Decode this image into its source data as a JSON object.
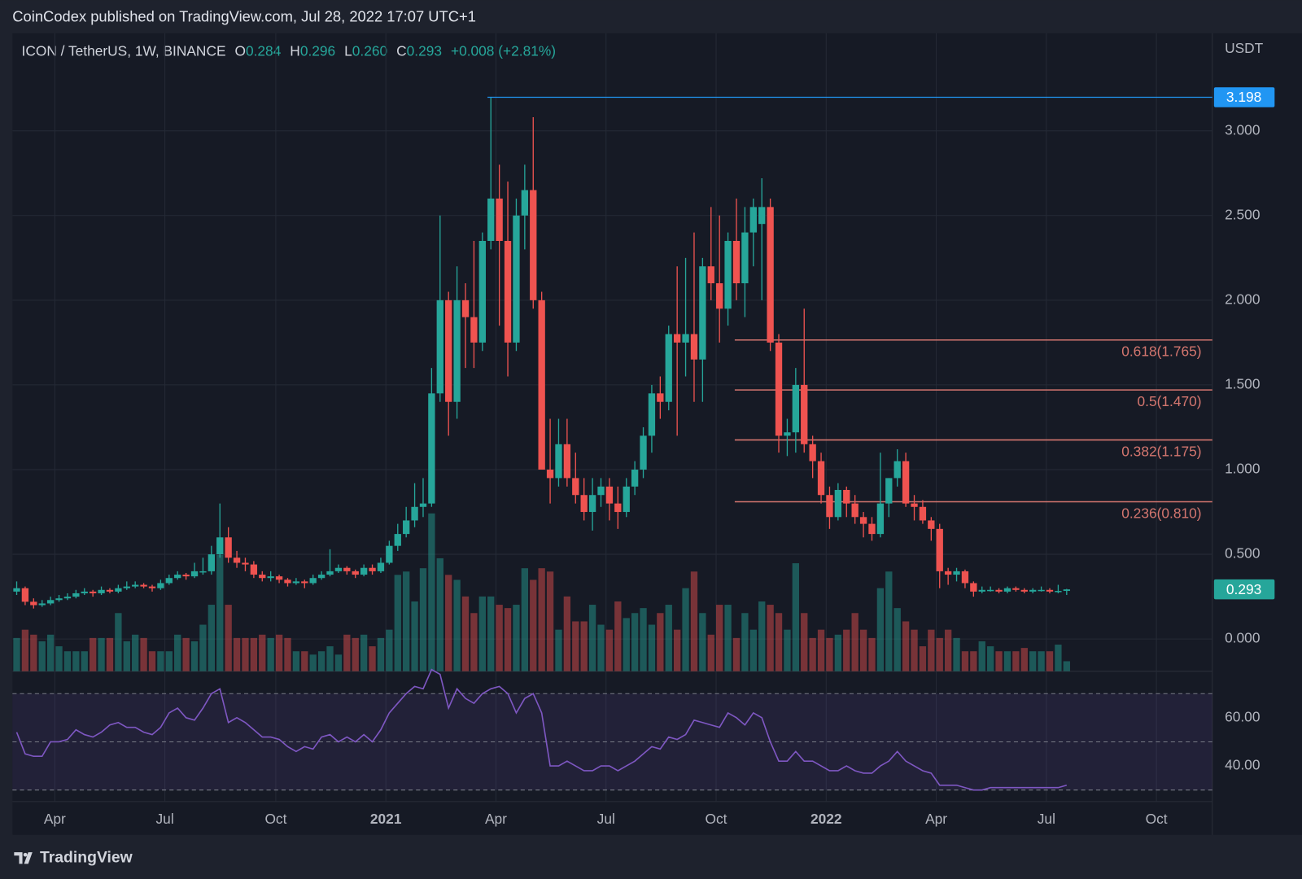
{
  "chart_data": {
    "type": "candlestick",
    "header": "CoinCodex published on TradingView.com, Jul 28, 2022 17:07 UTC+1",
    "legend": {
      "symbol": "ICON / TetherUS, 1W, BINANCE",
      "o_label": "O",
      "o": "0.284",
      "h_label": "H",
      "h": "0.296",
      "l_label": "L",
      "l": "0.260",
      "c_label": "C",
      "c": "0.293",
      "change": "+0.008 (+2.81%)"
    },
    "axis_unit": "USDT",
    "footer": "TradingView",
    "up_color": "#26a69a",
    "down_color": "#ef5350",
    "ylim": [
      -0.19,
      3.575
    ],
    "yticks": [
      {
        "value": 0,
        "label": "0.000"
      },
      {
        "value": 0.5,
        "label": "0.500"
      },
      {
        "value": 1,
        "label": "1.000"
      },
      {
        "value": 1.5,
        "label": "1.500"
      },
      {
        "value": 2,
        "label": "2.000"
      },
      {
        "value": 2.5,
        "label": "2.500"
      },
      {
        "value": 3,
        "label": "3.000"
      }
    ],
    "xlim": [
      -0.5,
      141.2
    ],
    "xticks": [
      {
        "value": 4.5,
        "label": "Apr"
      },
      {
        "value": 17.5,
        "label": "Jul"
      },
      {
        "value": 30.6,
        "label": "Oct"
      },
      {
        "value": 43.6,
        "label": "2021"
      },
      {
        "value": 56.6,
        "label": "Apr"
      },
      {
        "value": 69.6,
        "label": "Jul"
      },
      {
        "value": 82.6,
        "label": "Oct"
      },
      {
        "value": 95.6,
        "label": "2022"
      },
      {
        "value": 108.6,
        "label": "Apr"
      },
      {
        "value": 121.6,
        "label": "Jul"
      },
      {
        "value": 134.6,
        "label": "Oct"
      }
    ],
    "grid": true,
    "high_line": {
      "value": 3.198,
      "label": "3.198",
      "start": 55.6,
      "color": "#2196f3"
    },
    "last_price": {
      "value": 0.293,
      "label": "0.293"
    },
    "fib_start": 84.8,
    "fib_color": "#d4766f",
    "fib_levels": [
      {
        "value": 1.765,
        "label": "0.618(1.765)"
      },
      {
        "value": 1.47,
        "label": "0.5(1.470)"
      },
      {
        "value": 1.175,
        "label": "0.382(1.175)"
      },
      {
        "value": 0.81,
        "label": "0.236(0.810)"
      }
    ],
    "candles": [
      [
        0.28,
        0.34,
        0.26,
        0.3
      ],
      [
        0.3,
        0.31,
        0.2,
        0.22
      ],
      [
        0.22,
        0.24,
        0.18,
        0.2
      ],
      [
        0.2,
        0.23,
        0.19,
        0.21
      ],
      [
        0.21,
        0.25,
        0.2,
        0.23
      ],
      [
        0.23,
        0.26,
        0.22,
        0.24
      ],
      [
        0.24,
        0.27,
        0.23,
        0.25
      ],
      [
        0.25,
        0.29,
        0.24,
        0.27
      ],
      [
        0.27,
        0.3,
        0.26,
        0.28
      ],
      [
        0.28,
        0.29,
        0.25,
        0.27
      ],
      [
        0.27,
        0.31,
        0.26,
        0.29
      ],
      [
        0.29,
        0.3,
        0.27,
        0.28
      ],
      [
        0.28,
        0.32,
        0.27,
        0.3
      ],
      [
        0.3,
        0.34,
        0.29,
        0.31
      ],
      [
        0.31,
        0.34,
        0.3,
        0.32
      ],
      [
        0.32,
        0.33,
        0.3,
        0.31
      ],
      [
        0.31,
        0.32,
        0.28,
        0.3
      ],
      [
        0.3,
        0.35,
        0.29,
        0.33
      ],
      [
        0.33,
        0.38,
        0.32,
        0.36
      ],
      [
        0.36,
        0.4,
        0.35,
        0.38
      ],
      [
        0.38,
        0.39,
        0.35,
        0.37
      ],
      [
        0.37,
        0.45,
        0.36,
        0.4
      ],
      [
        0.4,
        0.48,
        0.38,
        0.4
      ],
      [
        0.4,
        0.55,
        0.38,
        0.5
      ],
      [
        0.5,
        0.8,
        0.48,
        0.6
      ],
      [
        0.6,
        0.66,
        0.45,
        0.48
      ],
      [
        0.48,
        0.52,
        0.42,
        0.45
      ],
      [
        0.45,
        0.48,
        0.4,
        0.44
      ],
      [
        0.44,
        0.46,
        0.36,
        0.38
      ],
      [
        0.38,
        0.4,
        0.34,
        0.36
      ],
      [
        0.36,
        0.4,
        0.34,
        0.37
      ],
      [
        0.37,
        0.38,
        0.33,
        0.35
      ],
      [
        0.35,
        0.36,
        0.31,
        0.33
      ],
      [
        0.33,
        0.36,
        0.32,
        0.34
      ],
      [
        0.34,
        0.35,
        0.3,
        0.33
      ],
      [
        0.33,
        0.38,
        0.32,
        0.36
      ],
      [
        0.36,
        0.4,
        0.35,
        0.38
      ],
      [
        0.38,
        0.53,
        0.37,
        0.4
      ],
      [
        0.4,
        0.44,
        0.39,
        0.42
      ],
      [
        0.42,
        0.43,
        0.38,
        0.4
      ],
      [
        0.4,
        0.41,
        0.36,
        0.38
      ],
      [
        0.38,
        0.44,
        0.37,
        0.42
      ],
      [
        0.42,
        0.44,
        0.38,
        0.4
      ],
      [
        0.4,
        0.48,
        0.39,
        0.45
      ],
      [
        0.45,
        0.58,
        0.44,
        0.55
      ],
      [
        0.55,
        0.68,
        0.52,
        0.62
      ],
      [
        0.62,
        0.78,
        0.6,
        0.7
      ],
      [
        0.7,
        0.92,
        0.66,
        0.78
      ],
      [
        0.78,
        0.95,
        0.72,
        0.8
      ],
      [
        0.8,
        1.6,
        0.78,
        1.45
      ],
      [
        1.45,
        2.5,
        1.4,
        2.0
      ],
      [
        2.0,
        2.05,
        1.2,
        1.4
      ],
      [
        1.4,
        2.2,
        1.3,
        2.0
      ],
      [
        2.0,
        2.1,
        1.6,
        1.9
      ],
      [
        1.9,
        2.35,
        1.6,
        1.75
      ],
      [
        1.75,
        2.4,
        1.7,
        2.35
      ],
      [
        2.35,
        3.198,
        2.3,
        2.6
      ],
      [
        2.6,
        2.8,
        1.85,
        2.35
      ],
      [
        2.35,
        2.7,
        1.55,
        1.75
      ],
      [
        1.75,
        2.6,
        1.7,
        2.5
      ],
      [
        2.5,
        2.8,
        2.3,
        2.65
      ],
      [
        2.65,
        3.08,
        1.95,
        2.0
      ],
      [
        2.0,
        2.05,
        1.0,
        1.0
      ],
      [
        1.0,
        1.3,
        0.8,
        0.95
      ],
      [
        0.95,
        1.3,
        0.9,
        1.15
      ],
      [
        1.15,
        1.3,
        0.9,
        0.95
      ],
      [
        0.95,
        1.1,
        0.8,
        0.85
      ],
      [
        0.85,
        0.95,
        0.7,
        0.75
      ],
      [
        0.75,
        0.95,
        0.64,
        0.85
      ],
      [
        0.85,
        0.95,
        0.78,
        0.9
      ],
      [
        0.9,
        0.95,
        0.7,
        0.8
      ],
      [
        0.8,
        0.9,
        0.65,
        0.75
      ],
      [
        0.75,
        0.95,
        0.72,
        0.9
      ],
      [
        0.9,
        1.05,
        0.85,
        1.0
      ],
      [
        1.0,
        1.25,
        0.95,
        1.2
      ],
      [
        1.2,
        1.5,
        1.1,
        1.45
      ],
      [
        1.45,
        1.55,
        1.3,
        1.4
      ],
      [
        1.4,
        1.85,
        1.35,
        1.8
      ],
      [
        1.8,
        2.2,
        1.2,
        1.75
      ],
      [
        1.75,
        2.25,
        1.55,
        1.8
      ],
      [
        1.8,
        2.4,
        1.4,
        1.65
      ],
      [
        1.65,
        2.25,
        1.4,
        2.2
      ],
      [
        2.2,
        2.55,
        2.0,
        2.1
      ],
      [
        2.1,
        2.5,
        1.75,
        1.95
      ],
      [
        1.95,
        2.4,
        1.85,
        2.35
      ],
      [
        2.35,
        2.6,
        2.0,
        2.1
      ],
      [
        2.1,
        2.55,
        1.9,
        2.4
      ],
      [
        2.4,
        2.6,
        2.2,
        2.55
      ],
      [
        2.45,
        2.72,
        2.0,
        2.55
      ],
      [
        2.55,
        2.6,
        1.7,
        1.75
      ],
      [
        1.75,
        1.8,
        1.1,
        1.2
      ],
      [
        1.2,
        1.3,
        1.08,
        1.22
      ],
      [
        1.22,
        1.6,
        1.1,
        1.5
      ],
      [
        1.5,
        1.95,
        1.1,
        1.15
      ],
      [
        1.15,
        1.2,
        0.95,
        1.05
      ],
      [
        1.05,
        1.1,
        0.8,
        0.85
      ],
      [
        0.85,
        0.9,
        0.65,
        0.72
      ],
      [
        0.72,
        0.92,
        0.7,
        0.88
      ],
      [
        0.88,
        0.9,
        0.72,
        0.8
      ],
      [
        0.8,
        0.85,
        0.68,
        0.72
      ],
      [
        0.72,
        0.75,
        0.6,
        0.68
      ],
      [
        0.68,
        0.72,
        0.58,
        0.62
      ],
      [
        0.62,
        1.1,
        0.6,
        0.8
      ],
      [
        0.8,
        0.95,
        0.72,
        0.95
      ],
      [
        0.95,
        1.12,
        0.9,
        1.05
      ],
      [
        1.05,
        1.1,
        0.78,
        0.8
      ],
      [
        0.8,
        0.85,
        0.7,
        0.78
      ],
      [
        0.78,
        0.82,
        0.68,
        0.7
      ],
      [
        0.7,
        0.72,
        0.58,
        0.65
      ],
      [
        0.65,
        0.68,
        0.3,
        0.4
      ],
      [
        0.4,
        0.42,
        0.32,
        0.38
      ],
      [
        0.38,
        0.42,
        0.34,
        0.4
      ],
      [
        0.4,
        0.41,
        0.3,
        0.33
      ],
      [
        0.33,
        0.34,
        0.25,
        0.28
      ],
      [
        0.28,
        0.31,
        0.27,
        0.29
      ],
      [
        0.29,
        0.31,
        0.28,
        0.29
      ],
      [
        0.29,
        0.3,
        0.27,
        0.28
      ],
      [
        0.28,
        0.31,
        0.27,
        0.3
      ],
      [
        0.3,
        0.31,
        0.28,
        0.29
      ],
      [
        0.29,
        0.3,
        0.27,
        0.28
      ],
      [
        0.28,
        0.3,
        0.27,
        0.29
      ],
      [
        0.29,
        0.31,
        0.28,
        0.29
      ],
      [
        0.29,
        0.3,
        0.27,
        0.28
      ],
      [
        0.28,
        0.32,
        0.27,
        0.284
      ],
      [
        0.284,
        0.296,
        0.26,
        0.293
      ]
    ],
    "volume": [
      20,
      25,
      22,
      18,
      22,
      15,
      12,
      12,
      12,
      20,
      20,
      20,
      35,
      18,
      22,
      20,
      12,
      12,
      12,
      22,
      20,
      18,
      28,
      40,
      70,
      40,
      20,
      20,
      20,
      22,
      20,
      22,
      20,
      12,
      12,
      10,
      12,
      15,
      10,
      22,
      20,
      22,
      15,
      20,
      25,
      58,
      60,
      42,
      62,
      95,
      68,
      58,
      55,
      45,
      35,
      45,
      45,
      40,
      38,
      40,
      62,
      55,
      62,
      60,
      25,
      45,
      30,
      30,
      40,
      28,
      25,
      42,
      32,
      35,
      38,
      28,
      35,
      40,
      25,
      50,
      60,
      35,
      22,
      40,
      40,
      20,
      35,
      25,
      42,
      40,
      35,
      25,
      65,
      35,
      20,
      25,
      20,
      22,
      25,
      35,
      25,
      20,
      50,
      60,
      38,
      30,
      25,
      15,
      25,
      20,
      25,
      20,
      12,
      12,
      18,
      15,
      12,
      12,
      12,
      14,
      12,
      12,
      12,
      16,
      6
    ],
    "rsi": [
      54,
      45,
      44,
      44,
      50,
      50,
      51,
      55,
      53,
      52,
      54,
      57,
      58,
      56,
      56,
      54,
      53,
      56,
      62,
      64,
      60,
      59,
      64,
      70,
      72,
      58,
      60,
      58,
      55,
      52,
      52,
      51,
      48,
      46,
      48,
      47,
      52,
      53,
      50,
      52,
      50,
      53,
      50,
      55,
      62,
      66,
      70,
      73,
      72,
      80,
      78,
      64,
      72,
      68,
      66,
      70,
      72,
      73,
      70,
      62,
      68,
      70,
      62,
      40,
      40,
      42,
      40,
      38,
      38,
      40,
      40,
      38,
      40,
      42,
      45,
      48,
      47,
      52,
      51,
      53,
      59,
      58,
      57,
      56,
      62,
      60,
      57,
      62,
      60,
      50,
      42,
      42,
      46,
      42,
      42,
      40,
      38,
      38,
      40,
      38,
      37,
      37,
      40,
      42,
      46,
      42,
      40,
      38,
      37,
      32,
      32,
      32,
      31,
      30,
      30,
      31,
      31,
      31,
      31,
      31,
      31,
      31,
      31,
      31,
      32
    ],
    "rsi_color": "#7e57c2",
    "y2lim": [
      25.2,
      79.3
    ],
    "y2ticks": [
      {
        "value": 60,
        "label": "60.00"
      },
      {
        "value": 40,
        "label": "40.00"
      }
    ],
    "rsi_levels": [
      70,
      50,
      30
    ]
  }
}
